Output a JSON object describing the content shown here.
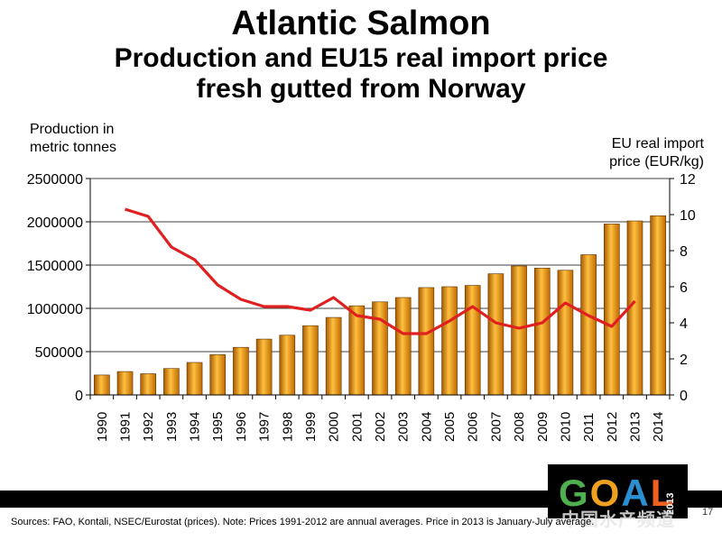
{
  "title": "Atlantic Salmon",
  "subtitle_line1": "Production and EU15 real import price",
  "subtitle_line2": "fresh gutted from Norway",
  "footer": "Sources: FAO, Kontali, NSEC/Eurostat (prices). Note: Prices 1991-2012 are annual averages. Price in 2013 is January-July average.",
  "page_number": "17",
  "logo": {
    "letters": [
      "G",
      "O",
      "A",
      "L"
    ],
    "year": "2013"
  },
  "watermark": "中国水产频道",
  "colors": {
    "bar": "#e8900a",
    "line": "#e02020"
  },
  "chart_data": {
    "type": "bar",
    "categories": [
      "1990",
      "1991",
      "1992",
      "1993",
      "1994",
      "1995",
      "1996",
      "1997",
      "1998",
      "1999",
      "2000",
      "2001",
      "2002",
      "2003",
      "2004",
      "2005",
      "2006",
      "2007",
      "2008",
      "2009",
      "2010",
      "2011",
      "2012",
      "2013",
      "2014"
    ],
    "series": [
      {
        "name": "Production",
        "type": "bar",
        "axis": "left",
        "values": [
          230000,
          270000,
          245000,
          305000,
          375000,
          465000,
          550000,
          645000,
          690000,
          800000,
          895000,
          1030000,
          1075000,
          1125000,
          1240000,
          1250000,
          1265000,
          1400000,
          1490000,
          1465000,
          1440000,
          1620000,
          1975000,
          2010000,
          2070000
        ]
      },
      {
        "name": "EU real import price",
        "type": "line",
        "axis": "right",
        "x": [
          "1991",
          "1992",
          "1993",
          "1994",
          "1995",
          "1996",
          "1997",
          "1998",
          "1999",
          "2000",
          "2001",
          "2002",
          "2003",
          "2004",
          "2005",
          "2006",
          "2007",
          "2008",
          "2009",
          "2010",
          "2011",
          "2012",
          "2013"
        ],
        "values": [
          10.3,
          9.9,
          8.2,
          7.5,
          6.1,
          5.3,
          4.9,
          4.9,
          4.7,
          5.4,
          4.4,
          4.2,
          3.4,
          3.4,
          4.1,
          4.9,
          4.0,
          3.7,
          4.0,
          5.1,
          4.4,
          3.8,
          5.2
        ]
      }
    ],
    "ylabel_left_line1": "Production in",
    "ylabel_left_line2": "metric tonnes",
    "ylabel_right_line1": "EU real import",
    "ylabel_right_line2": "price (EUR/kg)",
    "ylim_left": [
      0,
      2500000
    ],
    "ylim_right": [
      0,
      12
    ],
    "yticks_left": [
      "0",
      "500000",
      "1000000",
      "1500000",
      "2000000",
      "2500000"
    ],
    "yticks_right": [
      "0",
      "2",
      "4",
      "6",
      "8",
      "10",
      "12"
    ],
    "grid": true
  }
}
